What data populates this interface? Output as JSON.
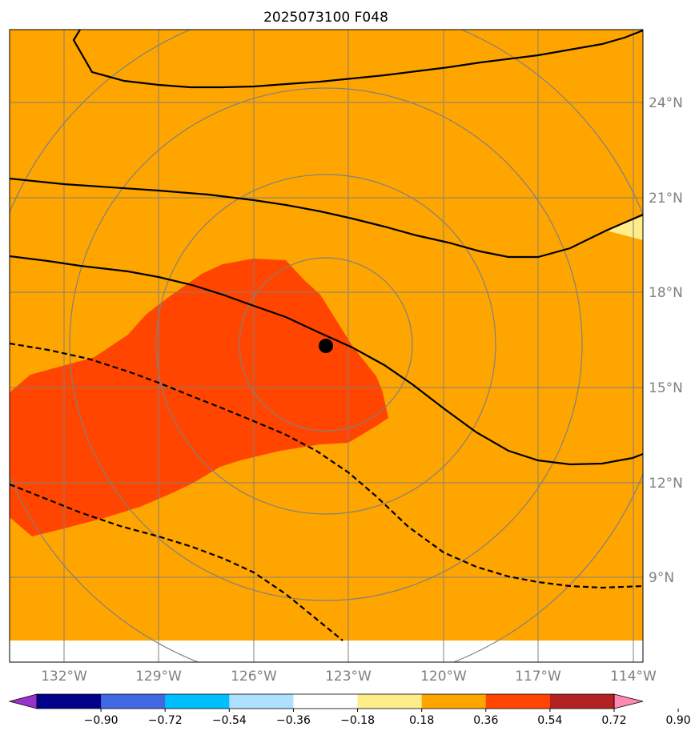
{
  "title": "2025073100 F048",
  "lat_labels": [
    "24°N",
    "21°N",
    "18°N",
    "15°N",
    "12°N",
    "9°N"
  ],
  "lon_labels": [
    "132°W",
    "129°W",
    "126°W",
    "123°W",
    "120°W",
    "117°W",
    "114°W"
  ],
  "colorbar": {
    "ticks": [
      "−0.90",
      "−0.72",
      "−0.54",
      "−0.36",
      "−0.18",
      "0.18",
      "0.36",
      "0.54",
      "0.72",
      "0.90"
    ],
    "colors": [
      "#9932cc",
      "#00008b",
      "#4169e1",
      "#00bfff",
      "#b0e0ff",
      "#ffffff",
      "#ffec8b",
      "#ffa500",
      "#ff4500",
      "#b22222",
      "#ff88b0"
    ]
  },
  "colors": {
    "background_field": "#ffa500",
    "high_anomaly": "#ff4500",
    "low_anomaly": "#ffec8b",
    "grid": "#808080",
    "contour": "#000000"
  },
  "storm_center": {
    "lon": -123.7,
    "lat": 16.3
  }
}
